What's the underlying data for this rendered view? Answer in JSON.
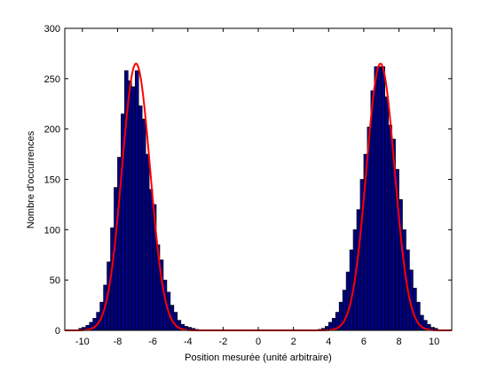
{
  "chart_data": {
    "type": "bar",
    "xlabel": "Position mesurée (unité arbitraire)",
    "ylabel": "Nombre d'occurrences",
    "xlim": [
      -11,
      11
    ],
    "ylim": [
      0,
      300
    ],
    "xticks": [
      -10,
      -8,
      -6,
      -4,
      -2,
      0,
      2,
      4,
      6,
      8,
      10
    ],
    "yticks": [
      0,
      50,
      100,
      150,
      200,
      250,
      300
    ],
    "grid": false,
    "bin_width": 0.2,
    "histogram": {
      "name": "",
      "color": "#000080",
      "edge_color": "#000000",
      "bin_centers": [
        -10.1,
        -9.9,
        -9.7,
        -9.5,
        -9.3,
        -9.1,
        -8.9,
        -8.7,
        -8.5,
        -8.3,
        -8.1,
        -7.9,
        -7.7,
        -7.5,
        -7.3,
        -7.1,
        -6.9,
        -6.7,
        -6.5,
        -6.3,
        -6.1,
        -5.9,
        -5.7,
        -5.5,
        -5.3,
        -5.1,
        -4.9,
        -4.7,
        -4.5,
        -4.3,
        -4.1,
        -3.9,
        -3.7,
        -3.5,
        3.5,
        3.7,
        3.9,
        4.1,
        4.3,
        4.5,
        4.7,
        4.9,
        5.1,
        5.3,
        5.5,
        5.7,
        5.9,
        6.1,
        6.3,
        6.5,
        6.7,
        6.9,
        7.1,
        7.3,
        7.5,
        7.7,
        7.9,
        8.1,
        8.3,
        8.5,
        8.7,
        8.9,
        9.1,
        9.3,
        9.5,
        9.7,
        9.9,
        10.1
      ],
      "counts": [
        2,
        3,
        5,
        8,
        12,
        18,
        28,
        45,
        68,
        102,
        142,
        172,
        215,
        258,
        248,
        242,
        258,
        223,
        210,
        175,
        140,
        125,
        85,
        70,
        50,
        38,
        25,
        18,
        10,
        6,
        4,
        3,
        2,
        1,
        1,
        2,
        4,
        8,
        12,
        18,
        28,
        40,
        58,
        80,
        100,
        120,
        150,
        175,
        202,
        238,
        262,
        262,
        262,
        232,
        204,
        190,
        160,
        130,
        100,
        80,
        60,
        42,
        28,
        15,
        10,
        6,
        3,
        2
      ]
    },
    "fit_curve": {
      "name": "",
      "color": "#ff0000",
      "type": "double-gaussian",
      "components": [
        {
          "mu": -6.95,
          "sigma": 0.8,
          "amplitude": 265
        },
        {
          "mu": 6.95,
          "sigma": 0.8,
          "amplitude": 265
        }
      ]
    }
  }
}
